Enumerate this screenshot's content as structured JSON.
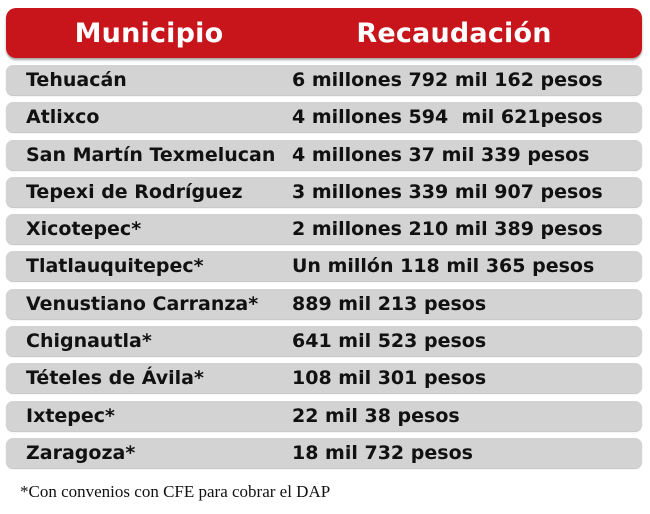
{
  "header": {
    "municipio": "Municipio",
    "recaudacion": "Recaudación"
  },
  "rows": [
    {
      "municipio": "Tehuacán",
      "recaudacion": "6 millones 792 mil 162 pesos"
    },
    {
      "municipio": "Atlixco",
      "recaudacion": "4 millones 594  mil 621pesos"
    },
    {
      "municipio": "San Martín Texmelucan",
      "recaudacion": "4 millones 37 mil 339 pesos"
    },
    {
      "municipio": "Tepexi de Rodríguez",
      "recaudacion": "3 millones 339 mil 907 pesos"
    },
    {
      "municipio": "Xicotepec*",
      "recaudacion": "2 millones 210 mil 389 pesos"
    },
    {
      "municipio": "Tlatlauquitepec*",
      "recaudacion": "Un millón 118 mil 365 pesos"
    },
    {
      "municipio": "Venustiano Carranza*",
      "recaudacion": "889 mil 213 pesos"
    },
    {
      "municipio": "Chignautla*",
      "recaudacion": "641 mil 523 pesos"
    },
    {
      "municipio": "Tételes de Ávila*",
      "recaudacion": "108 mil 301 pesos"
    },
    {
      "municipio": "Ixtepec*",
      "recaudacion": "22 mil 38 pesos"
    },
    {
      "municipio": "Zaragoza*",
      "recaudacion": "18 mil 732 pesos"
    }
  ],
  "footnote": "*Con convenios con CFE para cobrar el DAP",
  "colors": {
    "header_bg": "#c8141b",
    "row_bg": "#d3d3d3"
  }
}
